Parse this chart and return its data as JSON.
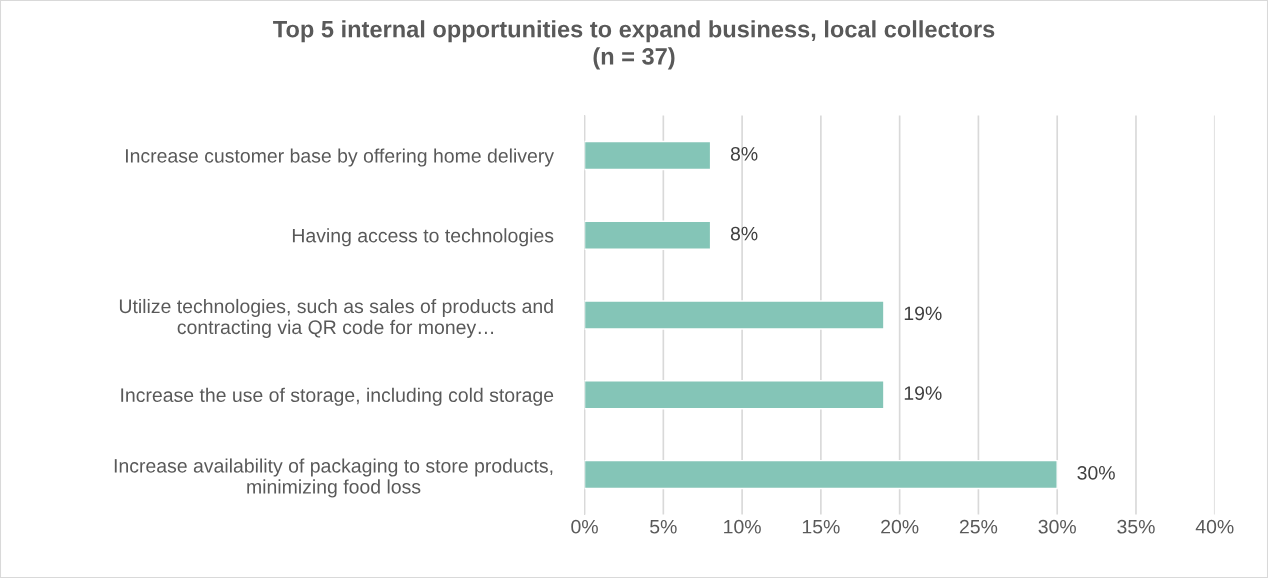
{
  "chart_data": {
    "type": "bar",
    "orientation": "horizontal",
    "title": "Top 5 internal opportunities to expand business, local collectors\n(n = 37)",
    "categories": [
      "Increase customer base by offering home delivery",
      "Having access to technologies",
      "Utilize technologies, such as sales of products and\ncontracting via QR code for money…",
      "Increase the use of storage, including cold storage",
      "Increase availability of packaging to store products,\nminimizing food loss"
    ],
    "values": [
      8,
      8,
      19,
      19,
      30
    ],
    "color": "#84c5b7",
    "value_labels": [
      "8%",
      "8%",
      "19%",
      "19%",
      "30%"
    ],
    "xlim": [
      0,
      40
    ],
    "xticks": [
      {
        "value": 0,
        "label": "0%"
      },
      {
        "value": 5,
        "label": "5%"
      },
      {
        "value": 10,
        "label": "10%"
      },
      {
        "value": 15,
        "label": "15%"
      },
      {
        "value": 20,
        "label": "20%"
      },
      {
        "value": 25,
        "label": "25%"
      },
      {
        "value": 30,
        "label": "30%"
      },
      {
        "value": 35,
        "label": "35%"
      },
      {
        "value": 40,
        "label": "40%"
      }
    ],
    "grid": "x",
    "legend": false
  }
}
